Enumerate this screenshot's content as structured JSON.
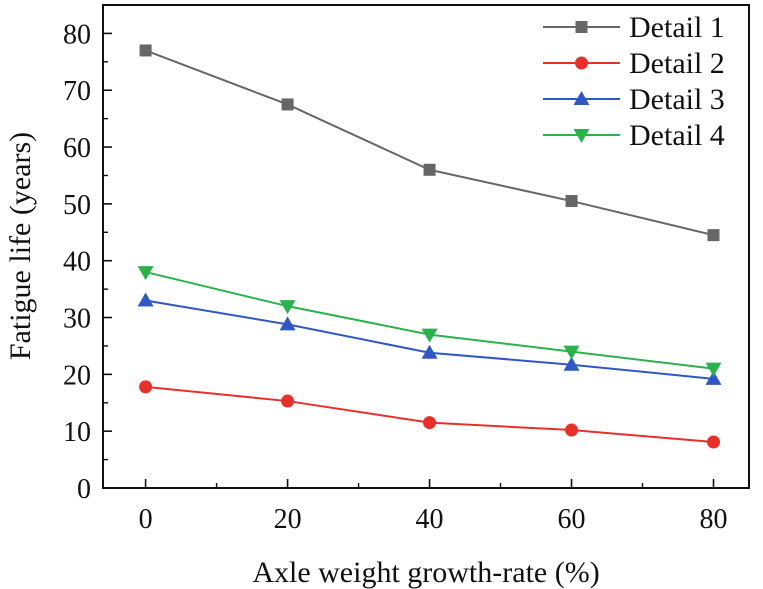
{
  "chart_data": {
    "type": "line",
    "title": "",
    "xlabel": "Axle weight growth-rate (%)",
    "ylabel": "Fatigue life (years)",
    "x": [
      0,
      20,
      40,
      60,
      80
    ],
    "xlim": [
      -6,
      85
    ],
    "ylim": [
      0,
      85
    ],
    "xticks": [
      0,
      20,
      40,
      60,
      80
    ],
    "yticks": [
      0,
      10,
      20,
      30,
      40,
      50,
      60,
      70,
      80
    ],
    "xtick_labels": [
      "0",
      "20",
      "40",
      "60",
      "80"
    ],
    "ytick_labels": [
      "0",
      "10",
      "20",
      "30",
      "40",
      "50",
      "60",
      "70",
      "80"
    ],
    "grid": false,
    "legend_position": "top-right",
    "series": [
      {
        "name": "Detail 1",
        "marker": "square",
        "color": "#666666",
        "values": [
          77,
          67.5,
          56,
          50.5,
          44.5
        ]
      },
      {
        "name": "Detail 2",
        "marker": "circle",
        "color": "#e8302a",
        "values": [
          17.8,
          15.3,
          11.5,
          10.2,
          8.1
        ]
      },
      {
        "name": "Detail 3",
        "marker": "triangle-up",
        "color": "#2f58c4",
        "values": [
          33,
          28.8,
          23.8,
          21.7,
          19.2
        ]
      },
      {
        "name": "Detail 4",
        "marker": "triangle-down",
        "color": "#2bb24c",
        "values": [
          38,
          32,
          27,
          24,
          21
        ]
      }
    ]
  }
}
